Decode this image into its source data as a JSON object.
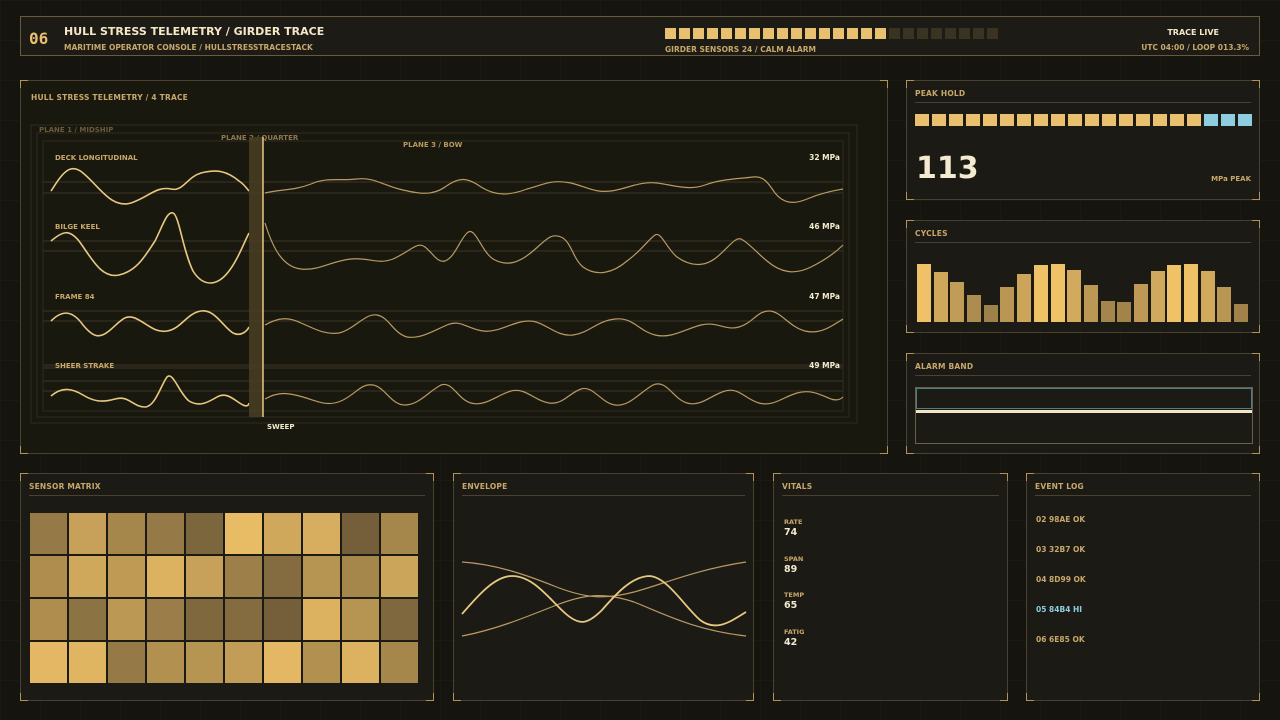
{
  "header": {
    "id_number": "06",
    "title": "HULL STRESS TELEMETRY / GIRDER TRACE",
    "subtitle": "MARITIME OPERATOR CONSOLE / HULLSTRESSTRACESTACK",
    "sensor_bar": {
      "total": 24,
      "active": 16
    },
    "sensor_label": "GIRDER SENSORS 24 / CALM ALARM",
    "status": "TRACE LIVE",
    "clock": "UTC 04:00 / LOOP 013.3%"
  },
  "trace": {
    "title": "HULL STRESS TELEMETRY / 4 TRACE",
    "planes": [
      "PLANE 1 / MIDSHIP",
      "PLANE 2 / QUARTER",
      "PLANE 3 / BOW"
    ],
    "sweep_label": "SWEEP",
    "channels": [
      {
        "label": "DECK LONGITUDINAL",
        "value": "32 MPa"
      },
      {
        "label": "BILGE KEEL",
        "value": "46 MPa"
      },
      {
        "label": "FRAME 84",
        "value": "47 MPa"
      },
      {
        "label": "SHEER STRAKE",
        "value": "49 MPa"
      }
    ]
  },
  "peak_hold": {
    "title": "PEAK HOLD",
    "value": "113",
    "unit": "MPa PEAK",
    "segments": {
      "total": 20,
      "warm": 17
    }
  },
  "cycles": {
    "title": "CYCLES",
    "levels": [
      0.95,
      0.82,
      0.65,
      0.45,
      0.28,
      0.58,
      0.78,
      0.93,
      0.95,
      0.85,
      0.6,
      0.35,
      0.33,
      0.62,
      0.83,
      0.93,
      0.95,
      0.83,
      0.58,
      0.3
    ]
  },
  "alarm_band": {
    "title": "ALARM BAND"
  },
  "sensor_matrix": {
    "title": "SENSOR MATRIX",
    "cells": [
      0.45,
      0.75,
      0.55,
      0.45,
      0.3,
      0.95,
      0.8,
      0.85,
      0.25,
      0.55,
      0.6,
      0.8,
      0.7,
      0.88,
      0.75,
      0.5,
      0.35,
      0.65,
      0.55,
      0.78,
      0.6,
      0.4,
      0.68,
      0.48,
      0.32,
      0.35,
      0.25,
      0.88,
      0.65,
      0.32,
      0.92,
      0.9,
      0.45,
      0.62,
      0.65,
      0.72,
      0.92,
      0.62,
      0.88,
      0.55
    ]
  },
  "envelope": {
    "title": "ENVELOPE"
  },
  "vitals": {
    "title": "VITALS",
    "items": [
      {
        "label": "RATE",
        "value": "74"
      },
      {
        "label": "SPAN",
        "value": "89"
      },
      {
        "label": "TEMP",
        "value": "65"
      },
      {
        "label": "FATIG",
        "value": "42"
      }
    ]
  },
  "event_log": {
    "title": "EVENT LOG",
    "events": [
      {
        "text": "02 98AE OK",
        "level": "ok"
      },
      {
        "text": "03 32B7 OK",
        "level": "ok"
      },
      {
        "text": "04 8D99 OK",
        "level": "ok"
      },
      {
        "text": "05 84B4 HI",
        "level": "hi"
      },
      {
        "text": "06 6E85 OK",
        "level": "ok"
      }
    ]
  },
  "colors": {
    "accent": "#e8c070",
    "dim": "#c8a86a",
    "highlight_blue": "#8ecde0",
    "trace_line": "#e0c080"
  }
}
